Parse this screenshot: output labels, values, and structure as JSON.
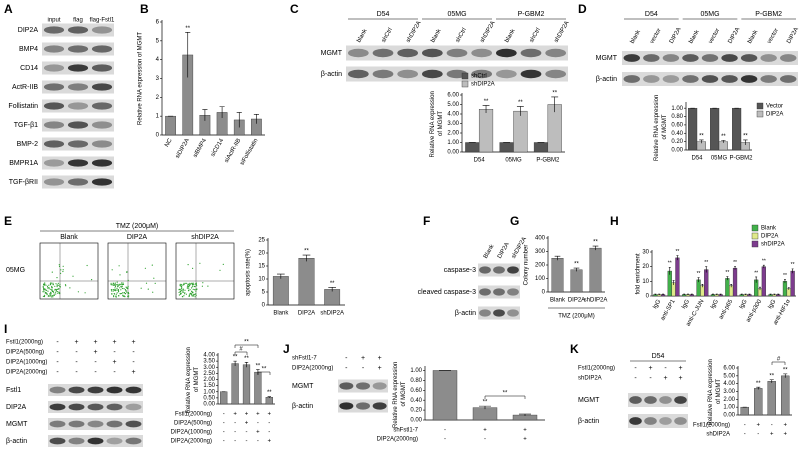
{
  "panel_letters": [
    "A",
    "B",
    "C",
    "D",
    "E",
    "F",
    "G",
    "H",
    "I",
    "J",
    "K"
  ],
  "blots": [
    {
      "lanes": [
        "input",
        "flag",
        "flag-Fstl1"
      ],
      "rows": [
        "DIP2A",
        "BMP4",
        "CD14",
        "ActR-IIB",
        "Follistatin",
        "TGF-β1",
        "BMP-2",
        "BMPR1A",
        "TGF-βRII"
      ]
    },
    {
      "groups": [
        "D54",
        "05MG",
        "P-GBM2"
      ],
      "lanes": [
        "blank",
        "shCtrl",
        "shDIP2A",
        "blank",
        "shCtrl",
        "shDIP2A",
        "blank",
        "shCtrl",
        "shDIP2A"
      ],
      "rows": [
        "MGMT",
        "β-actin"
      ]
    },
    {
      "groups": [
        "D54",
        "05MG",
        "P-GBM2"
      ],
      "lanes": [
        "blank",
        "vector",
        "DIP2A",
        "blank",
        "vector",
        "DIP2A",
        "blank",
        "vector",
        "DIP2A"
      ],
      "rows": [
        "MGMT",
        "β-actin"
      ]
    },
    {
      "lanes": [
        "Blank",
        "DIP2A",
        "shDIP2A"
      ],
      "rows": [
        "caspase-3",
        "cleaved caspase-3",
        "β-actin"
      ]
    },
    {
      "conditions": [
        {
          "label": "Fstl1(2000ng)",
          "signs": [
            "-",
            "+",
            "+",
            "+",
            "+"
          ]
        },
        {
          "label": "DIP2A(500ng)",
          "signs": [
            "-",
            "-",
            "+",
            "-",
            "-"
          ]
        },
        {
          "label": "DIP2A(1000ng)",
          "signs": [
            "-",
            "-",
            "-",
            "+",
            "-"
          ]
        },
        {
          "label": "DIP2A(2000ng)",
          "signs": [
            "-",
            "-",
            "-",
            "-",
            "+"
          ]
        }
      ],
      "rows": [
        "Fstl1",
        "DIP2A",
        "MGMT",
        "β-actin"
      ]
    },
    {
      "conditions": [
        {
          "label": "shFstl1-7",
          "signs": [
            "-",
            "+",
            "+"
          ]
        },
        {
          "label": "DIP2A(2000ng)",
          "signs": [
            "-",
            "-",
            "+"
          ]
        }
      ],
      "rows": [
        "MGMT",
        "β-actin"
      ]
    },
    {
      "groups": [
        "D54"
      ],
      "conditions": [
        {
          "label": "Fstl1(2000ng)",
          "signs": [
            "-",
            "+",
            "-",
            "+"
          ]
        },
        {
          "label": "shDIP2A",
          "signs": [
            "-",
            "-",
            "+",
            "+"
          ]
        }
      ],
      "rows": [
        "MGMT",
        "β-actin"
      ]
    }
  ],
  "flow": {
    "title": "TMZ (200μM)",
    "samples": [
      "Blank",
      "DIP2A",
      "shDIP2A"
    ],
    "row_label": "05MG"
  },
  "chart_data": [
    {
      "type": "bar",
      "y_label": "Relative RNA expression of MGMT",
      "categories": [
        "NC",
        "siDIP2A",
        "siBMP4",
        "siCD14",
        "siActR-IIB",
        "siFollistatin"
      ],
      "values": [
        1,
        4.25,
        1.05,
        1.2,
        0.8,
        0.85
      ],
      "errors": [
        0,
        1.2,
        0.3,
        0.3,
        0.4,
        0.25
      ],
      "sig": [
        null,
        "**",
        null,
        null,
        null,
        null
      ],
      "color": "#8c8c8c",
      "ylim": [
        0,
        6
      ],
      "yticks": [
        0,
        1,
        2,
        3,
        4,
        5,
        6
      ]
    },
    {
      "type": "bar",
      "y_label": "Relative RNA expression of MGMT",
      "categories": [
        "D54",
        "05MG",
        "P-GBM2"
      ],
      "series": [
        {
          "name": "shCtrl",
          "color": "#555555",
          "values": [
            1,
            1,
            1
          ],
          "errors": [
            0,
            0,
            0
          ]
        },
        {
          "name": "shDIP2A",
          "color": "#bdbdbd",
          "values": [
            4.5,
            4.3,
            5.0
          ],
          "errors": [
            0.4,
            0.5,
            0.8
          ],
          "sig": [
            "**",
            "**",
            "**"
          ]
        }
      ],
      "ylim": [
        0,
        6
      ],
      "yticks": [
        {
          "value": 0,
          "label": "0.00"
        },
        {
          "value": 1,
          "label": "1.00"
        },
        {
          "value": 2,
          "label": "2.00"
        },
        {
          "value": 3,
          "label": "3.00"
        },
        {
          "value": 4,
          "label": "4.00"
        },
        {
          "value": 5,
          "label": "5.00"
        },
        {
          "value": 6,
          "label": "6.00"
        }
      ]
    },
    {
      "type": "bar",
      "y_label": "Relative RNA expression of MGMT",
      "categories": [
        "D54",
        "05MG",
        "P-GBM2"
      ],
      "series": [
        {
          "name": "Vector",
          "color": "#555555",
          "values": [
            1,
            1,
            1
          ],
          "errors": [
            0,
            0,
            0
          ]
        },
        {
          "name": "DIP2A",
          "color": "#bdbdbd",
          "values": [
            0.2,
            0.2,
            0.18
          ],
          "errors": [
            0.04,
            0.03,
            0.06
          ],
          "sig": [
            "**",
            "**",
            "**"
          ]
        }
      ],
      "ylim": [
        0,
        1.1
      ],
      "yticks": [
        {
          "value": 0,
          "label": "0.00"
        },
        {
          "value": 0.2,
          "label": "0.20"
        },
        {
          "value": 0.4,
          "label": "0.40"
        },
        {
          "value": 0.6,
          "label": "0.60"
        },
        {
          "value": 0.8,
          "label": "0.80"
        },
        {
          "value": 1,
          "label": "1.00"
        }
      ]
    },
    {
      "type": "bar",
      "y_label": "apoptosis rate(%)",
      "categories": [
        "Blank",
        "DIP2A",
        "shDIP2A"
      ],
      "values": [
        11,
        18,
        6
      ],
      "errors": [
        0.9,
        1.2,
        0.8
      ],
      "sig": [
        null,
        "**",
        "**"
      ],
      "color": "#8c8c8c",
      "ylim": [
        0,
        25
      ],
      "yticks": [
        0,
        5,
        10,
        15,
        20,
        25
      ]
    },
    {
      "type": "bar",
      "y_label": "Colony number",
      "x_label": "TMZ (200μM)",
      "categories": [
        "Blank",
        "DIP2A",
        "shDIP2A"
      ],
      "values": [
        250,
        165,
        325
      ],
      "errors": [
        15,
        12,
        15
      ],
      "sig": [
        null,
        "**",
        "**"
      ],
      "color": "#8c8c8c",
      "ylim": [
        0,
        400
      ],
      "yticks": [
        0,
        100,
        200,
        300,
        400
      ]
    },
    {
      "type": "bar",
      "y_label": "fold enrichment",
      "categories": [
        "IgG",
        "anti-SP1",
        "IgG",
        "anti-C-JUN",
        "IgG",
        "anti-p65",
        "IgG",
        "anti-p300",
        "IgG",
        "anti-HIF1α"
      ],
      "series": [
        {
          "name": "Blank",
          "color": "#41b14a",
          "values": [
            1,
            17,
            1,
            11,
            1,
            12,
            1,
            11,
            1,
            10
          ],
          "errors": [
            0.3,
            2.5,
            0.3,
            1.5,
            0.3,
            1.2,
            0.3,
            2,
            0.3,
            1.2
          ],
          "sig": [
            null,
            "**",
            null,
            "**",
            null,
            "**",
            null,
            "**",
            null,
            "**"
          ]
        },
        {
          "name": "DIP2A",
          "color": "#dfe98a",
          "values": [
            1,
            9,
            1,
            7,
            1,
            7,
            1,
            5,
            1,
            5
          ],
          "errors": [
            0.3,
            1.5,
            0.3,
            1,
            0.3,
            1,
            0.3,
            1,
            0.3,
            0.8
          ]
        },
        {
          "name": "shDIP2A",
          "color": "#7d3c8e",
          "values": [
            1,
            26,
            1,
            18,
            1,
            19,
            1,
            20,
            1,
            17
          ],
          "errors": [
            0.3,
            1.5,
            0.3,
            2,
            0.3,
            1,
            0.3,
            1,
            0.3,
            1.5
          ],
          "sig": [
            null,
            "**",
            null,
            "**",
            null,
            "**",
            null,
            "**",
            null,
            "**"
          ]
        }
      ],
      "ylim": [
        0,
        30
      ],
      "yticks": [
        0,
        10,
        20,
        30
      ]
    },
    {
      "type": "bar",
      "y_label": "Relative RNA expression of MGMT",
      "categories": [
        null,
        null,
        null,
        null,
        null
      ],
      "values": [
        1,
        3.3,
        3.2,
        2.6,
        0.55
      ],
      "errors": [
        0,
        0.2,
        0.2,
        0.2,
        0.05
      ],
      "sig": [
        null,
        "**",
        "**",
        "**",
        "**"
      ],
      "color": "#8c8c8c",
      "ylim": [
        0,
        4
      ],
      "yticks": [
        {
          "value": 0,
          "label": "0.00"
        },
        {
          "value": 0.5,
          "label": "0.50"
        },
        {
          "value": 1,
          "label": "1.00"
        },
        {
          "value": 1.5,
          "label": "1.50"
        },
        {
          "value": 2,
          "label": "2.00"
        },
        {
          "value": 2.5,
          "label": "2.50"
        },
        {
          "value": 3,
          "label": "3.00"
        },
        {
          "value": 3.5,
          "label": "3.50"
        },
        {
          "value": 4,
          "label": "4.00"
        }
      ],
      "conditions": [
        {
          "label": "Fstl1(2000ng)",
          "signs": [
            "-",
            "+",
            "+",
            "+",
            "+"
          ]
        },
        {
          "label": "DIP2A(500ng)",
          "signs": [
            "-",
            "-",
            "+",
            "-",
            "-"
          ]
        },
        {
          "label": "DIP2A(1000ng)",
          "signs": [
            "-",
            "-",
            "-",
            "+",
            "-"
          ]
        },
        {
          "label": "DIP2A(2000ng)",
          "signs": [
            "-",
            "-",
            "-",
            "-",
            "+"
          ]
        }
      ],
      "annotations": [
        "#",
        "**",
        "**"
      ]
    },
    {
      "type": "bar",
      "y_label": "Relative RNA expression of MGMT",
      "categories": [
        null,
        null,
        null
      ],
      "values": [
        1,
        0.25,
        0.1
      ],
      "errors": [
        0,
        0.03,
        0.02
      ],
      "sig": [
        null,
        "**",
        null
      ],
      "color": "#8c8c8c",
      "ylim": [
        0,
        1.05
      ],
      "yticks": [
        {
          "value": 0,
          "label": "0.00"
        },
        {
          "value": 0.2,
          "label": "0.20"
        },
        {
          "value": 0.4,
          "label": "0.40"
        },
        {
          "value": 0.6,
          "label": "0.60"
        },
        {
          "value": 0.8,
          "label": "0.80"
        },
        {
          "value": 1,
          "label": "1.00"
        }
      ],
      "conditions": [
        {
          "label": "shFstl1-7",
          "signs": [
            "-",
            "+",
            "+"
          ]
        },
        {
          "label": "DIP2A(2000ng)",
          "signs": [
            "-",
            "-",
            "+"
          ]
        }
      ],
      "annotations": [
        "**"
      ]
    },
    {
      "type": "bar",
      "y_label": "Relative RNA expression of MGMT",
      "categories": [
        null,
        null,
        null,
        null
      ],
      "values": [
        1,
        3.4,
        4.3,
        5.0
      ],
      "errors": [
        0,
        0.15,
        0.2,
        0.25
      ],
      "sig": [
        null,
        "**",
        "**",
        "**"
      ],
      "color": "#8c8c8c",
      "ylim": [
        0,
        6
      ],
      "yticks": [
        {
          "value": 0,
          "label": "0.00"
        },
        {
          "value": 1,
          "label": "1.00"
        },
        {
          "value": 2,
          "label": "2.00"
        },
        {
          "value": 3,
          "label": "3.00"
        },
        {
          "value": 4,
          "label": "4.00"
        },
        {
          "value": 5,
          "label": "5.00"
        },
        {
          "value": 6,
          "label": "6.00"
        }
      ],
      "conditions": [
        {
          "label": "Fstl1(2000ng)",
          "signs": [
            "-",
            "+",
            "-",
            "+"
          ]
        },
        {
          "label": "shDIP2A",
          "signs": [
            "-",
            "-",
            "+",
            "+"
          ]
        }
      ],
      "annotations": [
        "#"
      ]
    }
  ]
}
